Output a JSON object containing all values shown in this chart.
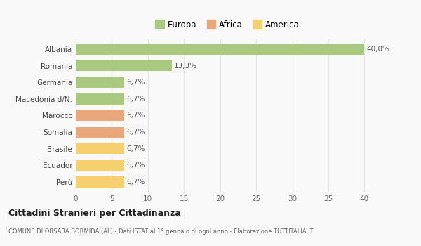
{
  "categories": [
    "Albania",
    "Romania",
    "Germania",
    "Macedonia d/N.",
    "Marocco",
    "Somalia",
    "Brasile",
    "Ecuador",
    "Perù"
  ],
  "values": [
    40.0,
    13.3,
    6.7,
    6.7,
    6.7,
    6.7,
    6.7,
    6.7,
    6.7
  ],
  "colors": [
    "#a8c97f",
    "#a8c97f",
    "#a8c97f",
    "#a8c97f",
    "#e8a87c",
    "#e8a87c",
    "#f5d06e",
    "#f5d06e",
    "#f5d06e"
  ],
  "labels": [
    "40,0%",
    "13,3%",
    "6,7%",
    "6,7%",
    "6,7%",
    "6,7%",
    "6,7%",
    "6,7%",
    "6,7%"
  ],
  "legend": [
    {
      "label": "Europa",
      "color": "#a8c97f"
    },
    {
      "label": "Africa",
      "color": "#e8a87c"
    },
    {
      "label": "America",
      "color": "#f5d06e"
    }
  ],
  "xlim": [
    0,
    40
  ],
  "xticks": [
    0,
    5,
    10,
    15,
    20,
    25,
    30,
    35,
    40
  ],
  "title": "Cittadini Stranieri per Cittadinanza",
  "subtitle": "COMUNE DI ORSARA BORMIDA (AL) - Dati ISTAT al 1° gennaio di ogni anno - Elaborazione TUTTITALIA.IT",
  "background_color": "#f9f9f9",
  "grid_color": "#e8e8e8"
}
